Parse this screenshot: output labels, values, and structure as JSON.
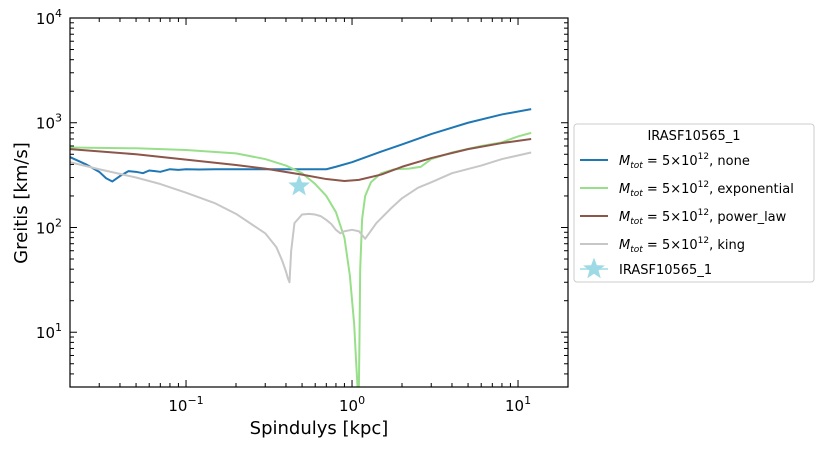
{
  "chart_data": {
    "type": "line",
    "title": "",
    "xlabel": "Spindulys [kpc]",
    "ylabel": "Greitis [km/s]",
    "xscale": "log",
    "yscale": "log",
    "xlim": [
      0.02,
      20
    ],
    "ylim": [
      3,
      10000
    ],
    "x_ticks": [
      0.1,
      1,
      10
    ],
    "x_tick_labels": [
      "10",
      "10",
      "10"
    ],
    "x_tick_exps": [
      "−1",
      "0",
      "1"
    ],
    "y_ticks": [
      10,
      100,
      1000,
      10000
    ],
    "y_tick_labels": [
      "10",
      "10",
      "10",
      "10"
    ],
    "y_tick_exps": [
      "1",
      "2",
      "3",
      "4"
    ],
    "legend": {
      "title": "IRASF10565_1",
      "placement": "center-right-outside"
    },
    "series": [
      {
        "name": "M_tot = 5×10^12, none",
        "label_prefix": "M",
        "label_sub": "tot",
        "label_mid": " =  5×10",
        "label_sup": "12",
        "label_suffix": ", none",
        "color": "#1f77b4",
        "x": [
          0.02,
          0.025,
          0.03,
          0.033,
          0.036,
          0.04,
          0.045,
          0.05,
          0.055,
          0.06,
          0.065,
          0.07,
          0.08,
          0.09,
          0.1,
          0.12,
          0.15,
          0.2,
          0.3,
          0.4,
          0.5,
          0.6,
          0.7,
          0.8,
          1.0,
          1.5,
          2,
          3,
          5,
          8,
          12
        ],
        "y": [
          470,
          400,
          340,
          295,
          275,
          310,
          345,
          340,
          330,
          350,
          345,
          340,
          360,
          355,
          360,
          358,
          360,
          360,
          360,
          360,
          360,
          360,
          360,
          380,
          420,
          530,
          620,
          780,
          1000,
          1200,
          1350
        ]
      },
      {
        "name": "M_tot = 5×10^12, exponential",
        "label_prefix": "M",
        "label_sub": "tot",
        "label_mid": " =  5×10",
        "label_sup": "12",
        "label_suffix": ", exponential",
        "color": "#98df8a",
        "x": [
          0.02,
          0.05,
          0.1,
          0.2,
          0.3,
          0.4,
          0.5,
          0.6,
          0.7,
          0.8,
          0.9,
          0.97,
          1.03,
          1.06,
          1.08,
          1.09,
          1.1,
          1.11,
          1.12,
          1.15,
          1.2,
          1.3,
          1.5,
          1.8,
          2.2,
          2.6,
          3,
          4,
          6,
          8,
          10,
          12
        ],
        "y": [
          580,
          570,
          550,
          510,
          450,
          390,
          330,
          260,
          200,
          140,
          80,
          35,
          12,
          5,
          3,
          3,
          3,
          10,
          40,
          120,
          200,
          270,
          330,
          360,
          365,
          380,
          450,
          520,
          600,
          650,
          740,
          800
        ]
      },
      {
        "name": "M_tot = 5×10^12, power_law",
        "label_prefix": "M",
        "label_sub": "tot",
        "label_mid": " =  5×10",
        "label_sup": "12",
        "label_suffix": ", power_law",
        "color": "#8c564b",
        "x": [
          0.02,
          0.05,
          0.1,
          0.2,
          0.3,
          0.5,
          0.7,
          0.9,
          1.1,
          1.5,
          2,
          3,
          5,
          8,
          12
        ],
        "y": [
          560,
          500,
          445,
          395,
          365,
          320,
          290,
          278,
          285,
          320,
          380,
          460,
          560,
          640,
          700
        ]
      },
      {
        "name": "M_tot = 5×10^12, king",
        "label_prefix": "M",
        "label_sub": "tot",
        "label_mid": " =  5×10",
        "label_sup": "12",
        "label_suffix": ", king",
        "color": "#c7c7c7",
        "x": [
          0.02,
          0.03,
          0.05,
          0.07,
          0.1,
          0.15,
          0.2,
          0.3,
          0.35,
          0.38,
          0.4,
          0.41,
          0.42,
          0.43,
          0.45,
          0.5,
          0.55,
          0.6,
          0.65,
          0.7,
          0.75,
          0.8,
          0.85,
          0.9,
          1.0,
          1.1,
          1.2,
          1.4,
          1.7,
          2,
          2.5,
          3,
          4,
          6,
          8,
          12
        ],
        "y": [
          420,
          360,
          300,
          260,
          215,
          170,
          135,
          88,
          65,
          48,
          38,
          33,
          30,
          60,
          110,
          133,
          135,
          133,
          128,
          118,
          108,
          95,
          88,
          92,
          95,
          92,
          78,
          110,
          150,
          190,
          240,
          270,
          330,
          390,
          450,
          520
        ]
      }
    ],
    "points": [
      {
        "name": "IRASF10565_1",
        "color": "#9edae5",
        "marker": "star",
        "x": 0.48,
        "y": 248
      }
    ]
  }
}
